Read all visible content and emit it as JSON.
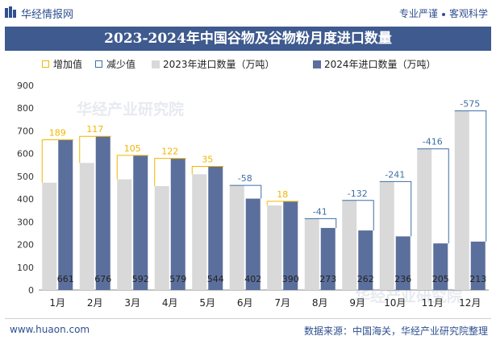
{
  "header": {
    "site_name": "华经情报网",
    "slogan_left": "专业严谨",
    "slogan_right": "客观科学"
  },
  "footer": {
    "website": "www.huaon.com",
    "source": "数据来源：中国海关，华经产业研究院整理"
  },
  "watermark": "华经产业研究院",
  "colors": {
    "header_bg": "#3e5a8e",
    "bar_2023": "#d9d9d9",
    "bar_2024": "#5b6f9c",
    "increase": "#f2b600",
    "decrease": "#3d6fa5"
  },
  "chart_data": {
    "type": "bar",
    "title": "2023-2024年中国谷物及谷物粉月度进口数量",
    "categories": [
      "1月",
      "2月",
      "3月",
      "4月",
      "5月",
      "6月",
      "7月",
      "8月",
      "9月",
      "10月",
      "11月",
      "12月"
    ],
    "series": [
      {
        "name": "2023年进口数量（万吨）",
        "values": [
          472,
          559,
          487,
          457,
          509,
          460,
          372,
          314,
          394,
          477,
          621,
          788
        ]
      },
      {
        "name": "2024年进口数量（万吨）",
        "values": [
          661,
          676,
          592,
          579,
          544,
          402,
          390,
          273,
          262,
          236,
          205,
          213
        ]
      }
    ],
    "changes": [
      189,
      117,
      105,
      122,
      35,
      -58,
      18,
      -41,
      -132,
      -241,
      -416,
      -575
    ],
    "legend": [
      "增加值",
      "减少值",
      "2023年进口数量（万吨）",
      "2024年进口数量（万吨）"
    ],
    "legend_position": "top",
    "ylim": [
      0,
      900
    ],
    "yticks": [
      0,
      100,
      200,
      300,
      400,
      500,
      600,
      700,
      800,
      900
    ],
    "xlabel": "",
    "ylabel": ""
  }
}
